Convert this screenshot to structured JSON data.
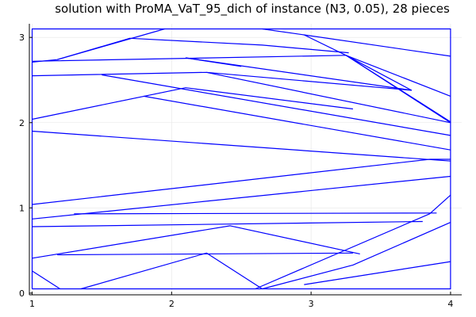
{
  "colors": {
    "line": "#0000ff",
    "axis": "#000000",
    "grid": "#e6e6e6",
    "background": "#ffffff"
  },
  "chart_data": {
    "type": "line",
    "title": "solution with ProMA_VaT_95_dich of instance (N3, 0.05), 28 pieces",
    "xlabel": "",
    "ylabel": "",
    "xlim": [
      0.98,
      4.08
    ],
    "ylim": [
      -0.02,
      3.16
    ],
    "xticks": [
      1,
      2,
      3,
      4
    ],
    "yticks": [
      0,
      1,
      2,
      3
    ],
    "xtick_labels": [
      "1",
      "2",
      "3",
      "4"
    ],
    "ytick_labels": [
      "0",
      "1",
      "2",
      "3"
    ],
    "grid": true,
    "legend": "none",
    "series": [
      {
        "segments": [
          [
            [
              1.0,
              0.05
            ],
            [
              4.0,
              0.05
            ],
            [
              4.0,
              3.1
            ],
            [
              1.0,
              3.1
            ],
            [
              1.0,
              0.05
            ]
          ],
          [
            [
              1.0,
              2.71
            ],
            [
              1.18,
              2.74
            ],
            [
              1.7,
              2.99
            ],
            [
              2.65,
              2.91
            ],
            [
              3.27,
              2.82
            ]
          ],
          [
            [
              1.18,
              2.74
            ],
            [
              1.95,
              3.1
            ]
          ],
          [
            [
              1.0,
              2.72
            ],
            [
              3.25,
              2.79
            ]
          ],
          [
            [
              2.65,
              3.1
            ],
            [
              2.95,
              3.03
            ],
            [
              4.0,
              2.78
            ]
          ],
          [
            [
              2.95,
              3.03
            ],
            [
              3.25,
              2.79
            ],
            [
              3.72,
              2.38
            ],
            [
              2.25,
              2.59
            ]
          ],
          [
            [
              3.25,
              2.79
            ],
            [
              4.0,
              2.31
            ]
          ],
          [
            [
              3.25,
              2.79
            ],
            [
              4.0,
              2.0
            ]
          ],
          [
            [
              3.25,
              2.79
            ],
            [
              4.0,
              2.01
            ]
          ],
          [
            [
              1.0,
              2.55
            ],
            [
              2.25,
              2.59
            ],
            [
              4.0,
              2.0
            ]
          ],
          [
            [
              1.5,
              2.56
            ],
            [
              4.0,
              1.85
            ]
          ],
          [
            [
              2.1,
              2.76
            ],
            [
              3.72,
              2.38
            ]
          ],
          [
            [
              2.1,
              2.76
            ],
            [
              2.5,
              2.66
            ]
          ],
          [
            [
              1.0,
              2.04
            ],
            [
              2.1,
              2.41
            ],
            [
              3.3,
              2.16
            ]
          ],
          [
            [
              1.8,
              2.31
            ],
            [
              4.0,
              1.68
            ]
          ],
          [
            [
              1.0,
              1.9
            ],
            [
              4.0,
              1.55
            ]
          ],
          [
            [
              1.0,
              1.04
            ],
            [
              3.85,
              1.57
            ]
          ],
          [
            [
              3.85,
              1.57
            ],
            [
              4.0,
              1.57
            ]
          ],
          [
            [
              1.0,
              0.87
            ],
            [
              4.0,
              1.37
            ]
          ],
          [
            [
              1.3,
              0.93
            ],
            [
              3.9,
              0.94
            ]
          ],
          [
            [
              1.0,
              0.78
            ],
            [
              3.8,
              0.84
            ]
          ],
          [
            [
              2.6,
              0.05
            ],
            [
              3.85,
              0.93
            ],
            [
              4.0,
              1.15
            ]
          ],
          [
            [
              1.0,
              0.41
            ],
            [
              2.42,
              0.79
            ],
            [
              3.35,
              0.46
            ]
          ],
          [
            [
              1.18,
              0.45
            ],
            [
              3.3,
              0.47
            ]
          ],
          [
            [
              1.0,
              0.26
            ],
            [
              1.2,
              0.05
            ]
          ],
          [
            [
              1.35,
              0.05
            ],
            [
              2.25,
              0.47
            ],
            [
              2.65,
              0.05
            ]
          ],
          [
            [
              2.65,
              0.05
            ],
            [
              3.3,
              0.33
            ],
            [
              4.0,
              0.83
            ]
          ],
          [
            [
              2.95,
              0.1
            ],
            [
              4.0,
              0.37
            ]
          ]
        ]
      }
    ]
  }
}
